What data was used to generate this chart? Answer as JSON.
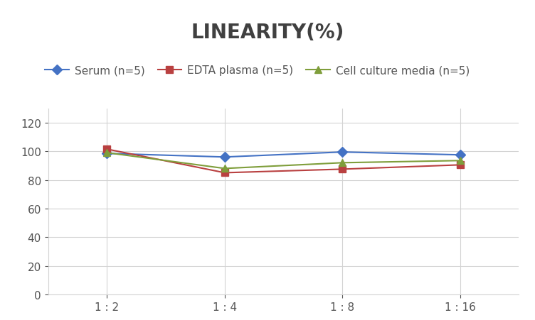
{
  "title": "LINEARITY(%)",
  "x_labels": [
    "1 : 2",
    "1 : 4",
    "1 : 8",
    "1 : 16"
  ],
  "x_positions": [
    0,
    1,
    2,
    3
  ],
  "series": [
    {
      "label": "Serum (n=5)",
      "values": [
        98.5,
        96.0,
        99.5,
        97.5
      ],
      "color": "#4472C4",
      "marker": "D",
      "markersize": 7,
      "markerfacecolor": "#4472C4"
    },
    {
      "label": "EDTA plasma (n=5)",
      "values": [
        101.5,
        85.0,
        87.5,
        90.5
      ],
      "color": "#B94040",
      "marker": "s",
      "markersize": 7,
      "markerfacecolor": "#B94040"
    },
    {
      "label": "Cell culture media (n=5)",
      "values": [
        99.0,
        88.0,
        92.0,
        93.5
      ],
      "color": "#7F9E3B",
      "marker": "^",
      "markersize": 7,
      "markerfacecolor": "#7F9E3B"
    }
  ],
  "ylim": [
    0,
    130
  ],
  "yticks": [
    0,
    20,
    40,
    60,
    80,
    100,
    120
  ],
  "background_color": "#ffffff",
  "grid_color": "#d3d3d3",
  "title_fontsize": 20,
  "legend_fontsize": 11,
  "tick_fontsize": 11,
  "title_color": "#404040"
}
